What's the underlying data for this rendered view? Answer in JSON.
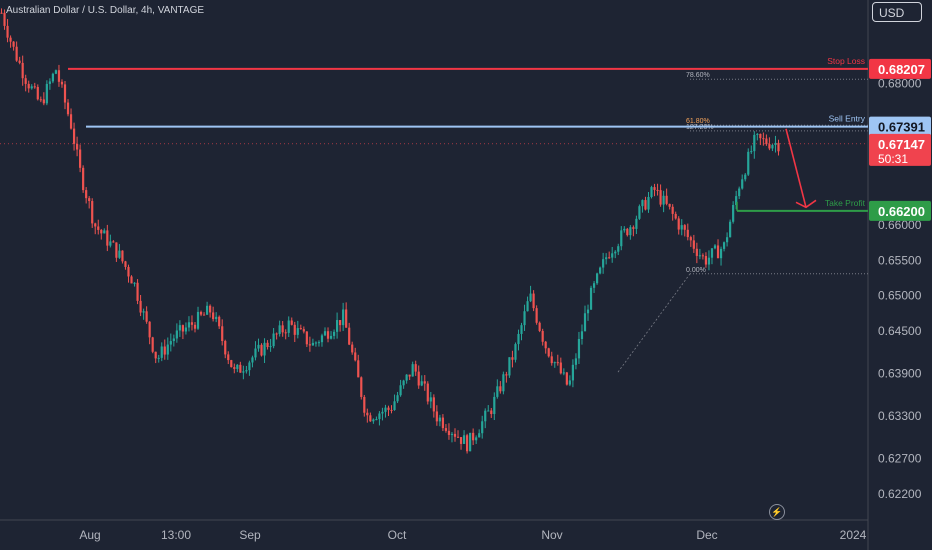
{
  "header": {
    "symbol_title": "Australian Dollar / U.S. Dollar, 4h, VANTAGE",
    "currency_button": "USD"
  },
  "colors": {
    "background": "#1e2433",
    "up_candle": "#26a69a",
    "down_candle": "#ef5350",
    "stop_loss": "#f23645",
    "sell_entry": "#9ec5f4",
    "take_profit": "#2e9c48",
    "price_badge": "#f0434e",
    "axis_text": "#b2b5be"
  },
  "chart_data": {
    "type": "candlestick",
    "title": "Australian Dollar / U.S. Dollar, 4h, VANTAGE",
    "x_tick_labels": [
      "Aug",
      "13:00",
      "Sep",
      "Oct",
      "Nov",
      "Dec",
      "2024"
    ],
    "y_tick_labels": [
      "0.68000",
      "0.66000",
      "0.65500",
      "0.65000",
      "0.64500",
      "0.63900",
      "0.63300",
      "0.62700",
      "0.62200"
    ],
    "ylim": [
      0.6183,
      0.6918
    ],
    "price_path": [
      [
        0,
        0.69
      ],
      [
        0.015,
        0.685
      ],
      [
        0.03,
        0.681
      ],
      [
        0.05,
        0.677
      ],
      [
        0.07,
        0.682
      ],
      [
        0.09,
        0.674
      ],
      [
        0.1,
        0.668
      ],
      [
        0.12,
        0.66
      ],
      [
        0.15,
        0.656
      ],
      [
        0.17,
        0.652
      ],
      [
        0.2,
        0.641
      ],
      [
        0.22,
        0.644
      ],
      [
        0.27,
        0.648
      ],
      [
        0.3,
        0.639
      ],
      [
        0.33,
        0.642
      ],
      [
        0.37,
        0.646
      ],
      [
        0.4,
        0.643
      ],
      [
        0.44,
        0.647
      ],
      [
        0.47,
        0.633
      ],
      [
        0.5,
        0.634
      ],
      [
        0.53,
        0.64
      ],
      [
        0.56,
        0.633
      ],
      [
        0.6,
        0.629
      ],
      [
        0.63,
        0.634
      ],
      [
        0.66,
        0.642
      ],
      [
        0.68,
        0.65
      ],
      [
        0.7,
        0.643
      ],
      [
        0.73,
        0.637
      ],
      [
        0.755,
        0.649
      ],
      [
        0.78,
        0.656
      ],
      [
        0.81,
        0.66
      ],
      [
        0.84,
        0.665
      ],
      [
        0.86,
        0.662
      ],
      [
        0.885,
        0.658
      ],
      [
        0.905,
        0.655
      ],
      [
        0.93,
        0.657
      ],
      [
        0.95,
        0.666
      ],
      [
        0.97,
        0.672
      ],
      [
        1.0,
        0.6715
      ]
    ],
    "levels": [
      {
        "label": "Stop Loss",
        "price": "0.68207",
        "value": 0.68207
      },
      {
        "label": "Sell Entry",
        "price": "0.67391",
        "value": 0.67391
      },
      {
        "label": "Take Profit",
        "price": "0.66200",
        "value": 0.662
      }
    ],
    "fibonacci": [
      {
        "label": "78.60%",
        "value": 0.6806
      },
      {
        "label": "61.80%",
        "value": 0.6741
      },
      {
        "label": "127.20%",
        "value": 0.6733
      },
      {
        "label": "0.00%",
        "value": 0.6531
      }
    ],
    "current_price": {
      "price": "0.67147",
      "countdown": "50:31",
      "value": 0.67147
    },
    "annotations": [
      "red arrow pointing down from sell entry toward take profit"
    ]
  }
}
